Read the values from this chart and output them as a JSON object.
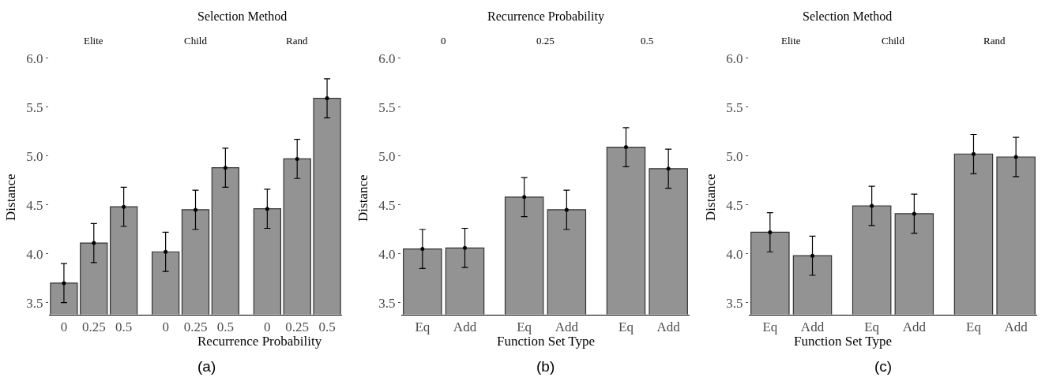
{
  "chart_data": [
    {
      "type": "bar",
      "title": "Selection Method",
      "xlabel": "Recurrence Probability",
      "ylabel": "Distance",
      "annotations": [
        "Elite",
        "Child",
        "Rand",
        "(a)"
      ],
      "categories": [
        "0",
        "0.25",
        "0.5",
        "0",
        "0.25",
        "0.5",
        "0",
        "0.25",
        "0.5"
      ],
      "values": [
        3.7,
        4.11,
        4.48,
        4.02,
        4.45,
        4.88,
        4.46,
        4.97,
        5.59
      ],
      "errors": [
        0.2,
        0.2,
        0.2,
        0.2,
        0.2,
        0.2,
        0.2,
        0.2,
        0.2
      ],
      "color": "#939393",
      "marker": "circle",
      "ylim": [
        3.38,
        6.0
      ],
      "yticks": [
        {
          "value": 3.5,
          "label": "3.5"
        },
        {
          "value": 4,
          "label": "4.0"
        },
        {
          "value": 4.5,
          "label": "4.5"
        },
        {
          "value": 5,
          "label": "5.0"
        },
        {
          "value": 5.5,
          "label": "5.5"
        },
        {
          "value": 6,
          "label": "6.0"
        }
      ]
    },
    {
      "type": "bar",
      "title": "Recurrence Probability",
      "xlabel": "Function Set Type",
      "ylabel": "Distance",
      "annotations": [
        "0",
        "0.25",
        "0.5",
        "(b)"
      ],
      "categories": [
        "Eq",
        "Add",
        "Eq",
        "Add",
        "Eq",
        "Add"
      ],
      "values": [
        4.05,
        4.06,
        4.58,
        4.45,
        5.09,
        4.87
      ],
      "errors": [
        0.2,
        0.2,
        0.2,
        0.2,
        0.2,
        0.2
      ],
      "color": "#939393",
      "marker": "circle",
      "ylim": [
        3.38,
        6.0
      ],
      "yticks": [
        {
          "value": 3.5,
          "label": "3.5"
        },
        {
          "value": 4,
          "label": "4.0"
        },
        {
          "value": 4.5,
          "label": "4.5"
        },
        {
          "value": 5,
          "label": "5.0"
        },
        {
          "value": 5.5,
          "label": "5.5"
        },
        {
          "value": 6,
          "label": "6.0"
        }
      ]
    },
    {
      "type": "bar",
      "title": "Selection Method",
      "xlabel": "Function Set Type",
      "ylabel": "Distance",
      "annotations": [
        "Elite",
        "Child",
        "Rand",
        "(c)"
      ],
      "categories": [
        "Eq",
        "Add",
        "Eq",
        "Add",
        "Eq",
        "Add"
      ],
      "values": [
        4.22,
        3.98,
        4.49,
        4.41,
        5.02,
        4.99
      ],
      "errors": [
        0.2,
        0.2,
        0.2,
        0.2,
        0.2,
        0.2
      ],
      "color": "#939393",
      "marker": "circle",
      "ylim": [
        3.38,
        6.0
      ],
      "yticks": [
        {
          "value": 3.5,
          "label": "3.5"
        },
        {
          "value": 4,
          "label": "4.0"
        },
        {
          "value": 4.5,
          "label": "4.5"
        },
        {
          "value": 5,
          "label": "5.0"
        },
        {
          "value": 5.5,
          "label": "5.5"
        },
        {
          "value": 6,
          "label": "6.0"
        }
      ]
    }
  ]
}
